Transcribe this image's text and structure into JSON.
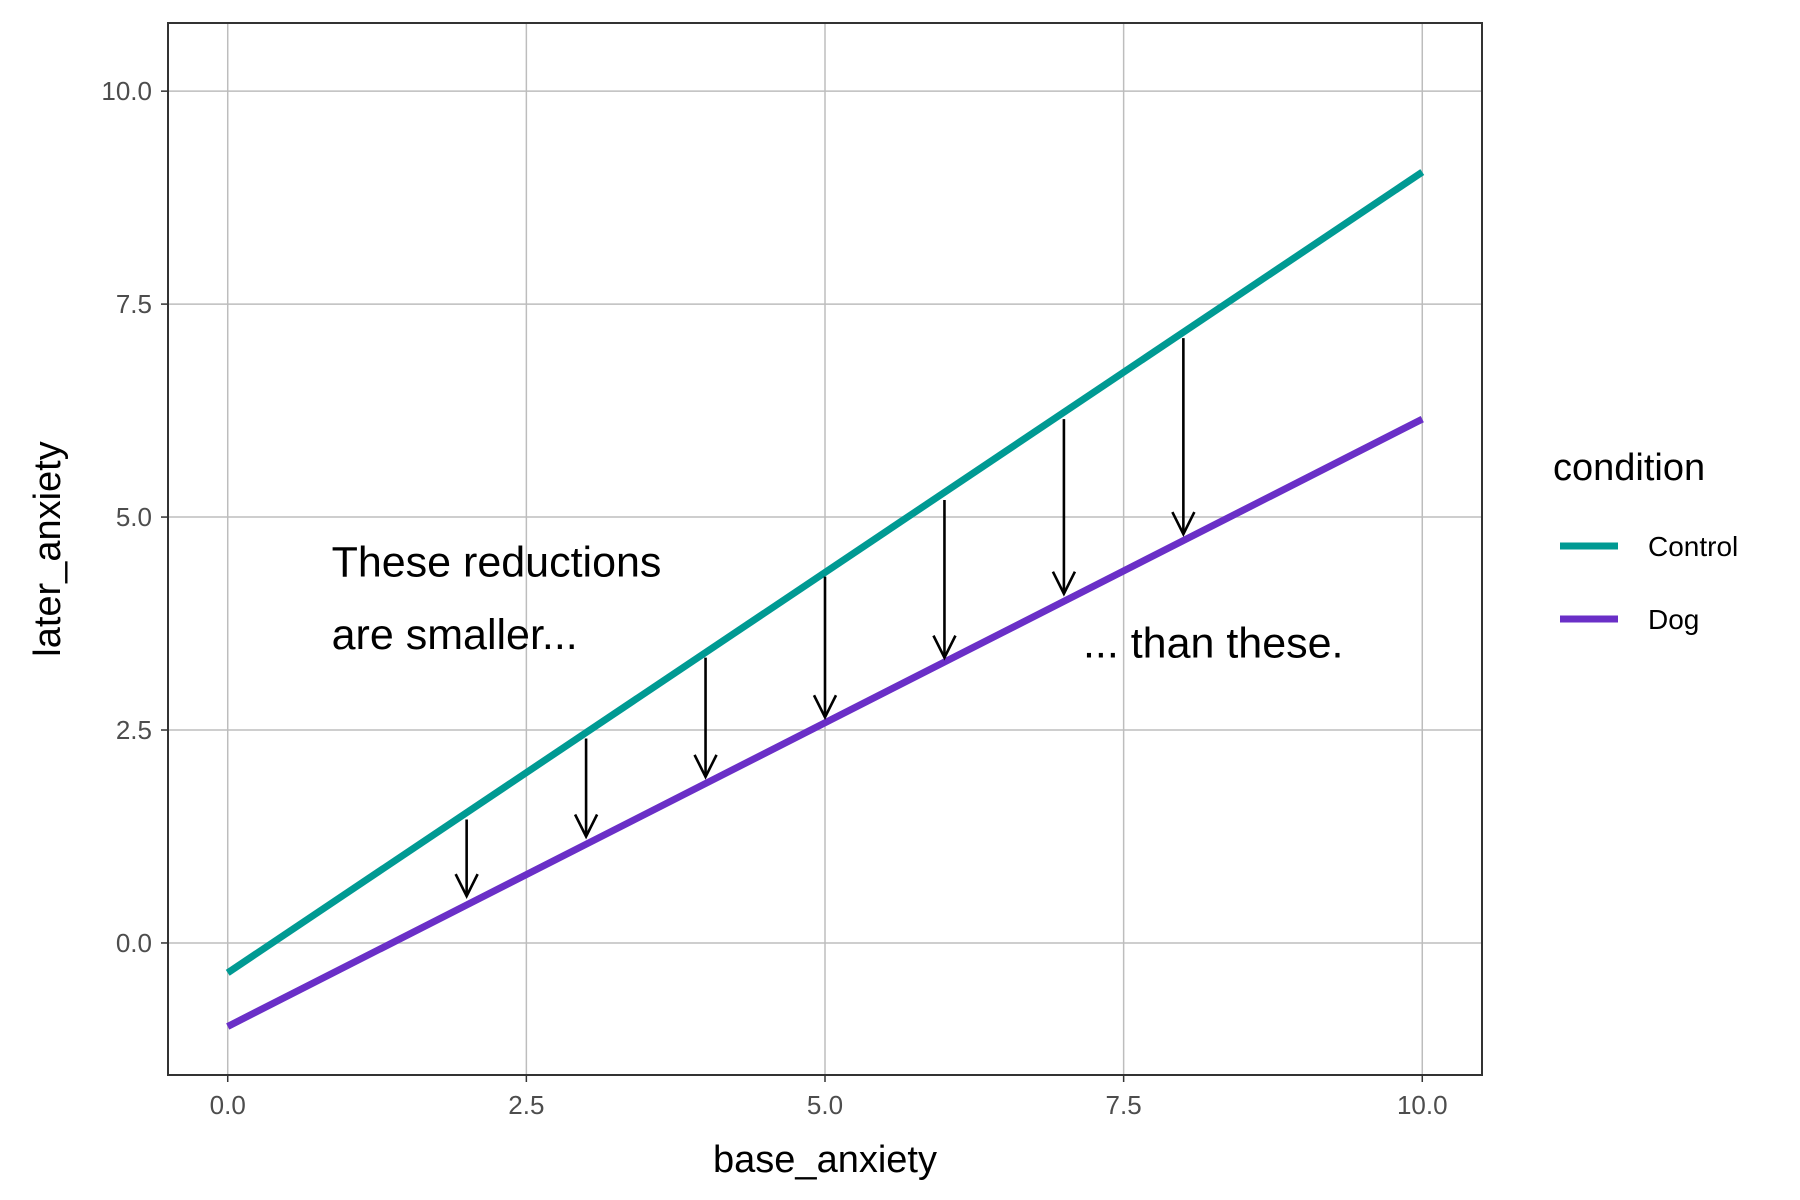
{
  "chart_data": {
    "type": "line",
    "title": "",
    "xlabel": "base_anxiety",
    "ylabel": "later_anxiety",
    "xlim": [
      -0.5,
      10.5
    ],
    "ylim": [
      -1.55,
      10.8
    ],
    "xticks": [
      0,
      2.5,
      5,
      7.5,
      10
    ],
    "xtick_labels": [
      "0.0",
      "2.5",
      "5.0",
      "7.5",
      "10.0"
    ],
    "yticks": [
      0,
      2.5,
      5,
      7.5,
      10
    ],
    "ytick_labels": [
      "0.0",
      "2.5",
      "5.0",
      "7.5",
      "10.0"
    ],
    "grid": true,
    "legend": {
      "title": "condition",
      "position": "right"
    },
    "series": [
      {
        "name": "Control",
        "color": "#009A93",
        "x": [
          0,
          10
        ],
        "y": [
          -0.35,
          9.05
        ]
      },
      {
        "name": "Dog",
        "color": "#6A2FC7",
        "x": [
          0,
          10
        ],
        "y": [
          -0.98,
          6.15
        ]
      }
    ],
    "arrows": [
      {
        "x": 2,
        "from": 1.45,
        "to": 0.55
      },
      {
        "x": 3,
        "from": 2.4,
        "to": 1.25
      },
      {
        "x": 4,
        "from": 3.35,
        "to": 1.95
      },
      {
        "x": 5,
        "from": 4.3,
        "to": 2.65
      },
      {
        "x": 6,
        "from": 5.2,
        "to": 3.35
      },
      {
        "x": 7,
        "from": 6.15,
        "to": 4.1
      },
      {
        "x": 8,
        "from": 7.1,
        "to": 4.8
      }
    ],
    "annotations": [
      {
        "text": "These reductions",
        "x": 2.25,
        "y": 4.3
      },
      {
        "text": "are smaller...",
        "x": 1.9,
        "y": 3.45
      },
      {
        "text": "... than these.",
        "x": 8.25,
        "y": 3.35
      }
    ]
  }
}
